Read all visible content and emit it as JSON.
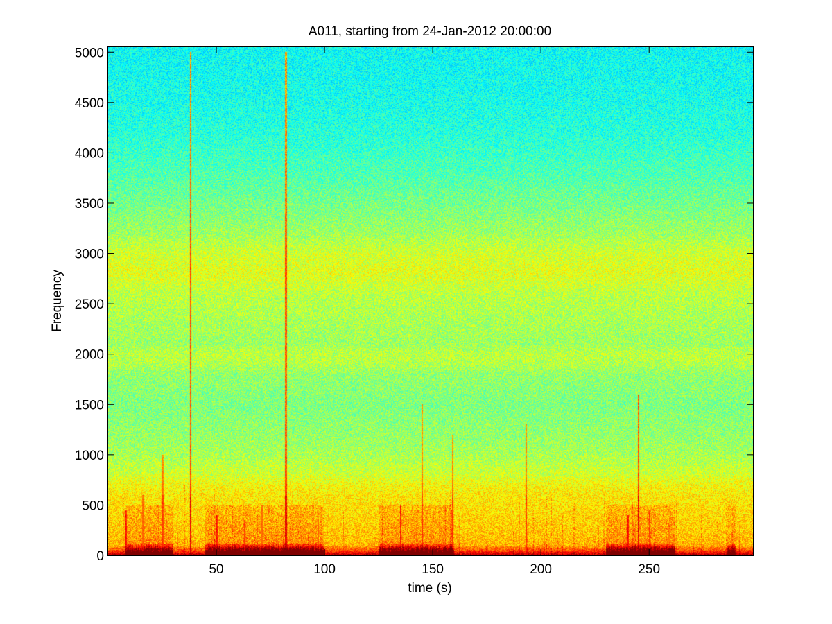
{
  "chart_data": {
    "type": "heatmap",
    "title": "A011, starting from 24-Jan-2012 20:00:00",
    "xlabel": "time (s)",
    "ylabel": "Frequency",
    "xlim": [
      0,
      298
    ],
    "ylim": [
      0,
      5050
    ],
    "x_ticks": [
      50,
      100,
      150,
      200,
      250
    ],
    "y_ticks": [
      0,
      500,
      1000,
      1500,
      2000,
      2500,
      3000,
      3500,
      4000,
      4500,
      5000
    ],
    "colormap": "jet",
    "grid": false,
    "legend": "none",
    "frequency_profile": {
      "frequency": [
        0,
        50,
        100,
        200,
        300,
        400,
        500,
        600,
        700,
        800,
        1000,
        1200,
        1500,
        1800,
        1900,
        2000,
        2100,
        2300,
        2600,
        2800,
        3000,
        3200,
        3500,
        3800,
        4200,
        4600,
        5050
      ],
      "intensity": [
        0.95,
        0.8,
        0.7,
        0.68,
        0.67,
        0.66,
        0.65,
        0.64,
        0.62,
        0.58,
        0.54,
        0.52,
        0.5,
        0.52,
        0.55,
        0.56,
        0.53,
        0.54,
        0.56,
        0.6,
        0.58,
        0.53,
        0.49,
        0.45,
        0.41,
        0.39,
        0.38
      ]
    },
    "broadband_events": [
      {
        "time": 8,
        "top_freq": 450,
        "strength": 0.9
      },
      {
        "time": 16,
        "top_freq": 600,
        "strength": 0.8
      },
      {
        "time": 25,
        "top_freq": 1000,
        "strength": 0.85
      },
      {
        "time": 38,
        "top_freq": 5000,
        "strength": 0.95
      },
      {
        "time": 50,
        "top_freq": 400,
        "strength": 0.9
      },
      {
        "time": 63,
        "top_freq": 350,
        "strength": 0.85
      },
      {
        "time": 71,
        "top_freq": 500,
        "strength": 0.8
      },
      {
        "time": 82,
        "top_freq": 5000,
        "strength": 0.95
      },
      {
        "time": 97,
        "top_freq": 350,
        "strength": 0.8
      },
      {
        "time": 135,
        "top_freq": 500,
        "strength": 0.9
      },
      {
        "time": 145,
        "top_freq": 1500,
        "strength": 0.85
      },
      {
        "time": 159,
        "top_freq": 1200,
        "strength": 0.85
      },
      {
        "time": 193,
        "top_freq": 1300,
        "strength": 0.85
      },
      {
        "time": 240,
        "top_freq": 400,
        "strength": 0.9
      },
      {
        "time": 245,
        "top_freq": 1600,
        "strength": 0.95
      },
      {
        "time": 250,
        "top_freq": 450,
        "strength": 0.85
      },
      {
        "time": 259,
        "top_freq": 300,
        "strength": 0.75
      },
      {
        "time": 288,
        "top_freq": 200,
        "strength": 0.75
      }
    ],
    "low_freq_bursts": [
      {
        "from": 8,
        "to": 30,
        "strength": 0.9
      },
      {
        "from": 45,
        "to": 100,
        "strength": 0.95
      },
      {
        "from": 125,
        "to": 160,
        "strength": 0.95
      },
      {
        "from": 230,
        "to": 262,
        "strength": 0.95
      },
      {
        "from": 286,
        "to": 290,
        "strength": 0.8
      }
    ]
  }
}
